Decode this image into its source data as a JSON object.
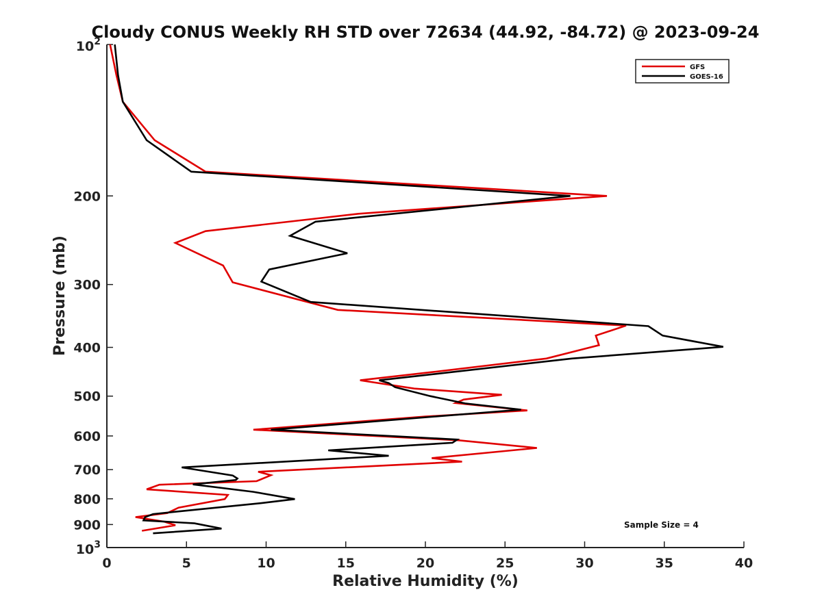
{
  "chart_data": {
    "type": "line",
    "title": "Cloudy CONUS Weekly RH STD over 72634 (44.92, -84.72) @ 2023-09-24",
    "xlabel": "Relative Humidity (%)",
    "ylabel": "Pressure (mb)",
    "xlim": [
      0,
      40
    ],
    "ylim": [
      100,
      1000
    ],
    "y_scale": "log",
    "y_reversed": true,
    "grid": false,
    "legend_position": "top-right",
    "x_ticks": [
      "0",
      "5",
      "10",
      "15",
      "20",
      "25",
      "30",
      "35",
      "40"
    ],
    "y_ticks": [
      {
        "value": 100,
        "base": "10",
        "exp": "2"
      },
      {
        "value": 200,
        "label": "200"
      },
      {
        "value": 300,
        "label": "300"
      },
      {
        "value": 400,
        "label": "400"
      },
      {
        "value": 500,
        "label": "500"
      },
      {
        "value": 600,
        "label": "600"
      },
      {
        "value": 700,
        "label": "700"
      },
      {
        "value": 800,
        "label": "800"
      },
      {
        "value": 900,
        "label": "900"
      },
      {
        "value": 1000,
        "base": "10",
        "exp": "3"
      }
    ],
    "series": [
      {
        "name": "GFS",
        "color": "#e00000",
        "points": [
          [
            0.2,
            100
          ],
          [
            0.6,
            115
          ],
          [
            1.0,
            130
          ],
          [
            3.0,
            155
          ],
          [
            6.2,
            179
          ],
          [
            31.4,
            200
          ],
          [
            15.8,
            217
          ],
          [
            6.2,
            235
          ],
          [
            4.3,
            248
          ],
          [
            7.3,
            275
          ],
          [
            7.9,
            297
          ],
          [
            14.5,
            337
          ],
          [
            32.6,
            362
          ],
          [
            30.7,
            379
          ],
          [
            30.9,
            396
          ],
          [
            27.6,
            421
          ],
          [
            20.4,
            448
          ],
          [
            15.9,
            465
          ],
          [
            19.3,
            483
          ],
          [
            24.8,
            497
          ],
          [
            22.4,
            508
          ],
          [
            21.9,
            516
          ],
          [
            26.4,
            534
          ],
          [
            20.0,
            549
          ],
          [
            9.2,
            583
          ],
          [
            22.1,
            612
          ],
          [
            27.0,
            634
          ],
          [
            20.4,
            664
          ],
          [
            22.3,
            675
          ],
          [
            9.5,
            707
          ],
          [
            10.3,
            718
          ],
          [
            9.4,
            738
          ],
          [
            3.3,
            750
          ],
          [
            2.5,
            766
          ],
          [
            7.6,
            786
          ],
          [
            7.4,
            801
          ],
          [
            4.5,
            833
          ],
          [
            3.8,
            854
          ],
          [
            1.8,
            870
          ],
          [
            3.6,
            888
          ],
          [
            4.3,
            903
          ],
          [
            2.2,
            926
          ]
        ]
      },
      {
        "name": "GOES-16",
        "color": "#000000",
        "points": [
          [
            0.5,
            100
          ],
          [
            0.7,
            115
          ],
          [
            1.0,
            130
          ],
          [
            2.5,
            155
          ],
          [
            5.3,
            179
          ],
          [
            29.1,
            200
          ],
          [
            13.1,
            225
          ],
          [
            11.5,
            240
          ],
          [
            15.1,
            260
          ],
          [
            10.2,
            280
          ],
          [
            9.7,
            296
          ],
          [
            12.8,
            325
          ],
          [
            34.0,
            363
          ],
          [
            34.9,
            379
          ],
          [
            38.7,
            399
          ],
          [
            29.2,
            421
          ],
          [
            17.1,
            465
          ],
          [
            17.7,
            471
          ],
          [
            18.1,
            480
          ],
          [
            20.3,
            500
          ],
          [
            22.5,
            517
          ],
          [
            26.0,
            532
          ],
          [
            10.3,
            583
          ],
          [
            22.0,
            610
          ],
          [
            21.7,
            619
          ],
          [
            13.9,
            641
          ],
          [
            17.7,
            657
          ],
          [
            4.7,
            693
          ],
          [
            7.9,
            719
          ],
          [
            8.2,
            729
          ],
          [
            8.1,
            734
          ],
          [
            5.4,
            749
          ],
          [
            9.2,
            775
          ],
          [
            11.8,
            801
          ],
          [
            9.7,
            816
          ],
          [
            4.3,
            849
          ],
          [
            2.9,
            858
          ],
          [
            2.4,
            870
          ],
          [
            2.3,
            883
          ],
          [
            5.5,
            895
          ],
          [
            7.2,
            917
          ],
          [
            2.9,
            937
          ]
        ]
      }
    ],
    "annotation": "Sample Size = 4"
  }
}
